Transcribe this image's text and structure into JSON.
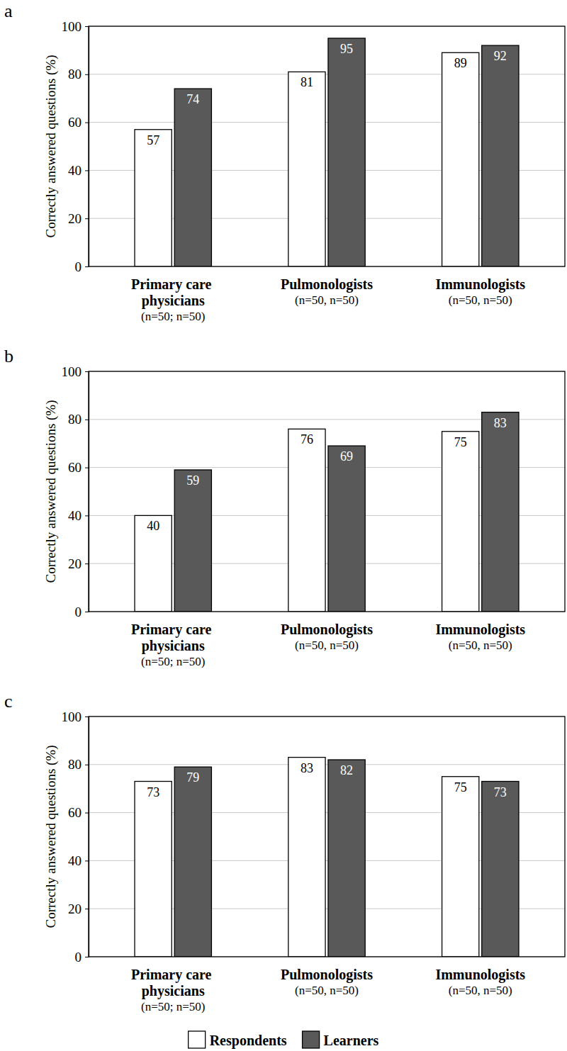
{
  "chart_data": [
    {
      "type": "bar",
      "title": "a",
      "ylabel": "Correctly answered questions (%)",
      "categories": [
        "Primary care physicians",
        "Pulmonologists",
        "Immunologists"
      ],
      "category_notes": [
        "(n=50; n=50)",
        "(n=50, n=50)",
        "(n=50, n=50)"
      ],
      "series": [
        {
          "color": "#ffffff",
          "values": [
            57,
            81,
            89
          ]
        },
        {
          "color": "#595959",
          "values": [
            74,
            95,
            92
          ]
        }
      ],
      "ylim": [
        0,
        100
      ],
      "yticks": [
        0,
        20,
        40,
        60,
        80,
        100
      ],
      "grid": true,
      "data_labels": true
    },
    {
      "type": "bar",
      "title": "b",
      "ylabel": "Correctly answered questions (%)",
      "categories": [
        "Primary care physicians",
        "Pulmonologists",
        "Immunologists"
      ],
      "category_notes": [
        "(n=50; n=50)",
        "(n=50, n=50)",
        "(n=50, n=50)"
      ],
      "series": [
        {
          "color": "#ffffff",
          "values": [
            40,
            76,
            75
          ]
        },
        {
          "color": "#595959",
          "values": [
            59,
            69,
            83
          ]
        }
      ],
      "ylim": [
        0,
        100
      ],
      "yticks": [
        0,
        20,
        40,
        60,
        80,
        100
      ],
      "grid": true,
      "data_labels": true
    },
    {
      "type": "bar",
      "title": "c",
      "ylabel": "Correctly answered questions (%)",
      "categories": [
        "Primary care physicians",
        "Pulmonologists",
        "Immunologists"
      ],
      "category_notes": [
        "(n=50; n=50)",
        "(n=50, n=50)",
        "(n=50, n=50)"
      ],
      "series": [
        {
          "name": "Respondents",
          "color": "#ffffff",
          "values": [
            73,
            83,
            75
          ]
        },
        {
          "name": "Learners",
          "color": "#595959",
          "values": [
            79,
            82,
            73
          ]
        }
      ],
      "ylim": [
        0,
        100
      ],
      "yticks": [
        0,
        20,
        40,
        60,
        80,
        100
      ],
      "grid": true,
      "data_labels": true,
      "legend": "bottom"
    }
  ]
}
